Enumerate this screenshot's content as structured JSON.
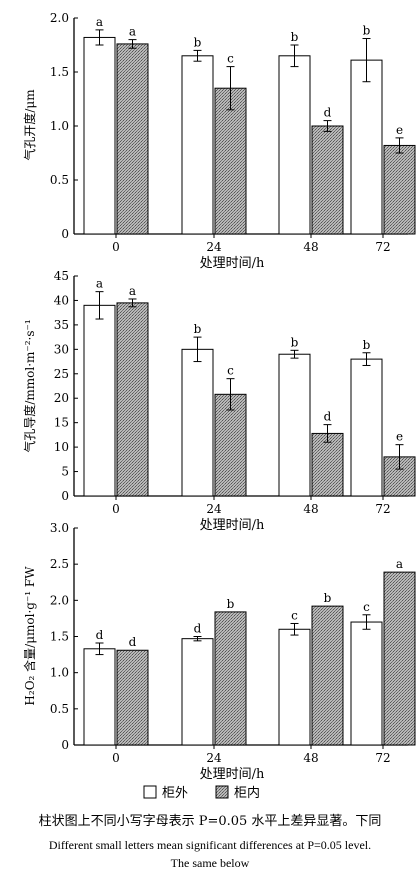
{
  "colors": {
    "outside_fill": "#ffffff",
    "inside_fill": "#9a9a9a",
    "axis": "#000000"
  },
  "chart_data": [
    {
      "type": "bar",
      "xlabel": "处理时间/h",
      "ylabel": "气孔开度/μm",
      "categories": [
        "0",
        "24",
        "48",
        "72"
      ],
      "ylim": [
        0,
        2.0
      ],
      "yticks": [
        "0",
        "0.5",
        "1.0",
        "1.5",
        "2.0"
      ],
      "series": [
        {
          "name": "柜外",
          "values": [
            1.82,
            1.65,
            1.65,
            1.61
          ],
          "errors": [
            0.07,
            0.05,
            0.1,
            0.2
          ],
          "labels": [
            "a",
            "b",
            "b",
            "b"
          ]
        },
        {
          "name": "柜内",
          "values": [
            1.76,
            1.35,
            1.0,
            0.82
          ],
          "errors": [
            0.04,
            0.2,
            0.05,
            0.07
          ],
          "labels": [
            "a",
            "c",
            "d",
            "e"
          ]
        }
      ]
    },
    {
      "type": "bar",
      "xlabel": "处理时间/h",
      "ylabel": "气孔导度/mmol·m⁻²·s⁻¹",
      "categories": [
        "0",
        "24",
        "48",
        "72"
      ],
      "ylim": [
        0,
        45
      ],
      "yticks": [
        "0",
        "5",
        "10",
        "15",
        "20",
        "25",
        "30",
        "35",
        "40",
        "45"
      ],
      "series": [
        {
          "name": "柜外",
          "values": [
            39.0,
            30.0,
            29.0,
            28.0
          ],
          "errors": [
            2.8,
            2.5,
            0.8,
            1.3
          ],
          "labels": [
            "a",
            "b",
            "b",
            "b"
          ]
        },
        {
          "name": "柜内",
          "values": [
            39.5,
            20.8,
            12.8,
            8.0
          ],
          "errors": [
            0.8,
            3.2,
            1.8,
            2.5
          ],
          "labels": [
            "a",
            "c",
            "d",
            "e"
          ]
        }
      ]
    },
    {
      "type": "bar",
      "xlabel": "处理时间/h",
      "ylabel": "H₂O₂ 含量/μmol·g⁻¹ FW",
      "categories": [
        "0",
        "24",
        "48",
        "72"
      ],
      "ylim": [
        0,
        3.0
      ],
      "yticks": [
        "0",
        "0.5",
        "1.0",
        "1.5",
        "2.0",
        "2.5",
        "3.0"
      ],
      "series": [
        {
          "name": "柜外",
          "values": [
            1.33,
            1.47,
            1.6,
            1.7
          ],
          "errors": [
            0.08,
            0.03,
            0.08,
            0.1
          ],
          "labels": [
            "d",
            "d",
            "c",
            "c"
          ]
        },
        {
          "name": "柜内",
          "values": [
            1.31,
            1.84,
            1.92,
            2.39
          ],
          "errors": [
            0,
            0,
            0,
            0
          ],
          "labels": [
            "d",
            "b",
            "b",
            "a"
          ]
        }
      ]
    }
  ],
  "legend": {
    "outside": "柜外",
    "inside": "柜内"
  },
  "caption": {
    "zh": "柱状图上不同小写字母表示 P=0.05 水平上差异显著。下同",
    "en_line1": "Different small letters mean significant differences at P=0.05 level.",
    "en_line2": "The same below"
  }
}
